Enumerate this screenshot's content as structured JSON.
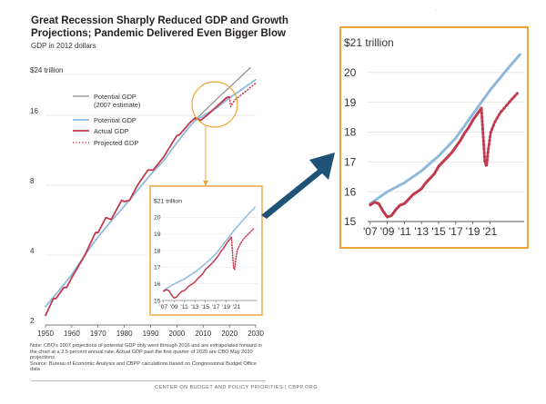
{
  "title": "Great Recession Sharply Reduced GDP and Growth Projections; Pandemic Delivered Even Bigger Blow",
  "subtitle": "GDP in 2012 dollars",
  "notes": [
    "Note: CBO's 2007 projections of potential GDP only went through 2016 and are extrapolated forward in the chart at a 2.5 percent annual rate.  Actual GDP past the first quarter of 2020 are CBO May 2020 projections.",
    "Source: Bureau of Economic Analysis and CBPP calculations based on Congressional Budget Office data"
  ],
  "credit": "CENTER ON BUDGET AND POLICY PRIORITIES | CBPP.ORG",
  "colors": {
    "potential2007": "#8c8c8c",
    "potential": "#8fb9dc",
    "actual": "#c0394d",
    "projected": "#c0394d",
    "highlight": "#f0a436",
    "arrow": "#1f5277"
  },
  "chart_data": [
    {
      "type": "line",
      "id": "main",
      "ylabel": "GDP in 2012 dollars",
      "y_scale": "log",
      "ylim": [
        2,
        24
      ],
      "y_ticks": [
        {
          "value": 2,
          "label": "2"
        },
        {
          "value": 4,
          "label": "4"
        },
        {
          "value": 8,
          "label": "8"
        },
        {
          "value": 16,
          "label": "16"
        },
        {
          "value": 24,
          "label": "$24 trillion"
        }
      ],
      "xlim": [
        1950,
        2030
      ],
      "x_ticks": [
        "1950",
        "1960",
        "1970",
        "1980",
        "1990",
        "2000",
        "2010",
        "2020",
        "2030"
      ],
      "legend_position": "upper-left",
      "series": [
        {
          "name": "Potential GDP\n(2007 estimate)",
          "key": "potential2007",
          "style": "solid",
          "x": [
            2007,
            2010,
            2013,
            2016,
            2020,
            2024,
            2028
          ],
          "y": [
            15.3,
            16.5,
            17.8,
            19.2,
            21.1,
            23.3,
            25.7
          ]
        },
        {
          "name": "Potential GDP",
          "key": "potential",
          "style": "solid",
          "x": [
            1950,
            1955,
            1960,
            1965,
            1970,
            1975,
            1980,
            1985,
            1990,
            1995,
            2000,
            2005,
            2007,
            2010,
            2015,
            2020,
            2025,
            2030
          ],
          "y": [
            2.4,
            2.8,
            3.3,
            4.0,
            4.8,
            5.6,
            6.5,
            7.6,
            8.9,
            10.2,
            12.2,
            14.4,
            15.2,
            15.9,
            17.2,
            19.0,
            20.8,
            22.8
          ]
        },
        {
          "name": "Actual GDP",
          "key": "actual",
          "style": "solid",
          "x": [
            1950,
            1953,
            1954,
            1957,
            1958,
            1960,
            1965,
            1969,
            1970,
            1973,
            1975,
            1979,
            1980,
            1982,
            1985,
            1989,
            1991,
            1995,
            2000,
            2001,
            2005,
            2007,
            2009,
            2012,
            2015,
            2019,
            2020
          ],
          "y": [
            2.2,
            2.6,
            2.6,
            2.9,
            2.9,
            3.2,
            4.0,
            5.0,
            5.0,
            5.8,
            5.7,
            6.9,
            6.8,
            6.9,
            8.0,
            9.3,
            9.3,
            10.6,
            13.1,
            13.2,
            14.9,
            15.6,
            15.2,
            16.2,
            17.4,
            19.1,
            19.2
          ]
        },
        {
          "name": "Projected GDP",
          "key": "projected",
          "style": "dotted",
          "x": [
            2020,
            2020.5,
            2021,
            2022,
            2023,
            2024,
            2025,
            2026,
            2027,
            2028,
            2030
          ],
          "y": [
            19.2,
            17.4,
            17.9,
            18.6,
            19.0,
            19.4,
            19.8,
            20.2,
            20.6,
            21.1,
            22.0
          ]
        }
      ]
    },
    {
      "type": "line",
      "id": "inset",
      "ylim": [
        15,
        21
      ],
      "y_ticks": [
        {
          "value": 15,
          "label": "15"
        },
        {
          "value": 16,
          "label": "16"
        },
        {
          "value": 17,
          "label": "17"
        },
        {
          "value": 18,
          "label": "18"
        },
        {
          "value": 19,
          "label": "19"
        },
        {
          "value": 20,
          "label": "20"
        },
        {
          "value": 21,
          "label": "$21 trillion"
        }
      ],
      "xlim": [
        2006.7,
        2025
      ],
      "x_ticks": [
        {
          "value": 2007,
          "label": "'07"
        },
        {
          "value": 2009,
          "label": "'09"
        },
        {
          "value": 2011,
          "label": "'11"
        },
        {
          "value": 2013,
          "label": "'13"
        },
        {
          "value": 2015,
          "label": "'15"
        },
        {
          "value": 2017,
          "label": "'17"
        },
        {
          "value": 2019,
          "label": "'19"
        },
        {
          "value": 2021,
          "label": "'21"
        }
      ],
      "series": [
        {
          "key": "potential",
          "style": "solid",
          "x": [
            2007,
            2009,
            2011,
            2013,
            2015,
            2017,
            2019,
            2021,
            2023,
            2024.5
          ],
          "y": [
            15.6,
            16.0,
            16.3,
            16.7,
            17.2,
            17.8,
            18.6,
            19.4,
            20.1,
            20.6
          ]
        },
        {
          "key": "actual",
          "style": "solid",
          "x": [
            2007,
            2007.5,
            2008,
            2008.5,
            2009,
            2009.5,
            2010,
            2010.5,
            2011,
            2011.5,
            2012,
            2012.5,
            2013,
            2013.5,
            2014,
            2014.5,
            2015,
            2015.5,
            2016,
            2016.5,
            2017,
            2017.5,
            2018,
            2018.5,
            2019,
            2019.5,
            2020
          ],
          "y": [
            15.55,
            15.65,
            15.6,
            15.35,
            15.15,
            15.2,
            15.4,
            15.55,
            15.6,
            15.75,
            15.9,
            16.0,
            16.1,
            16.3,
            16.45,
            16.6,
            16.85,
            17.0,
            17.15,
            17.3,
            17.5,
            17.7,
            17.95,
            18.15,
            18.4,
            18.6,
            18.8
          ]
        },
        {
          "key": "projected",
          "style": "dotted",
          "x": [
            2020,
            2020.2,
            2020.4,
            2020.6,
            2020.8,
            2021.1,
            2021.6,
            2022.2,
            2022.8,
            2023.4,
            2024.2
          ],
          "y": [
            18.8,
            17.9,
            17.0,
            16.85,
            17.4,
            18.0,
            18.35,
            18.65,
            18.85,
            19.05,
            19.3
          ]
        }
      ]
    }
  ]
}
